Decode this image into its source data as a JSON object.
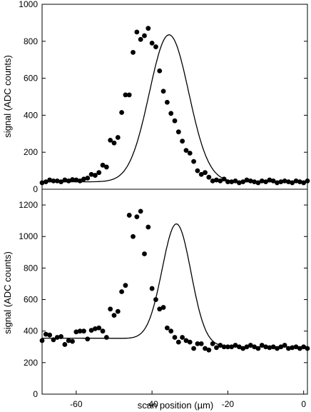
{
  "chart_data": [
    {
      "type": "scatter",
      "xlabel": "",
      "ylabel": "signal (ADC counts)",
      "xlim": [
        -69,
        1
      ],
      "ylim": [
        0,
        1000
      ],
      "yticks": [
        0,
        200,
        400,
        600,
        800,
        1000
      ],
      "xticks": [],
      "grid": false,
      "series": [
        {
          "kind": "points",
          "x": [
            -69,
            -68,
            -67,
            -66,
            -65,
            -64,
            -63,
            -62,
            -61,
            -60,
            -59,
            -58,
            -57,
            -56,
            -55,
            -54,
            -53,
            -52,
            -51,
            -50,
            -49,
            -48,
            -47,
            -46,
            -45,
            -44,
            -43,
            -42,
            -41,
            -40,
            -39,
            -38,
            -37,
            -36,
            -35,
            -34,
            -33,
            -32,
            -31,
            -30,
            -29,
            -28,
            -27,
            -26,
            -25,
            -24,
            -23,
            -22,
            -21,
            -20,
            -19,
            -18,
            -17,
            -16,
            -15,
            -14,
            -13,
            -12,
            -11,
            -10,
            -9,
            -8,
            -7,
            -6,
            -5,
            -4,
            -3,
            -2,
            -1,
            0,
            1
          ],
          "y": [
            35,
            40,
            50,
            45,
            45,
            40,
            50,
            45,
            52,
            50,
            45,
            55,
            60,
            80,
            75,
            90,
            130,
            120,
            265,
            250,
            280,
            415,
            510,
            510,
            740,
            850,
            810,
            830,
            870,
            790,
            770,
            640,
            530,
            470,
            410,
            370,
            310,
            260,
            210,
            195,
            150,
            100,
            80,
            90,
            65,
            45,
            50,
            45,
            55,
            40,
            40,
            45,
            35,
            40,
            50,
            45,
            40,
            35,
            45,
            40,
            50,
            45,
            35,
            40,
            45,
            40,
            35,
            45,
            40,
            35,
            45
          ],
          "x_plot": [
            -68.5,
            -67.5,
            -66.5,
            -65.5,
            -64.5,
            -63.5,
            -62.5,
            -61.5,
            -60.5,
            -59.5,
            -58.5,
            -57.5,
            -56.5,
            -55.5,
            -54.5,
            -53.5,
            -52.5,
            -51.5,
            -50.5,
            -49.5,
            -48.5,
            -47.5,
            -46.5,
            -45.5,
            -44.5,
            -43.5,
            -42.5,
            -41.5,
            -40.5,
            -39.5,
            -38.5,
            -37.5,
            -36.5,
            -35.5,
            -34.5,
            -33.5,
            -32.5,
            -31.5,
            -30.5,
            -29.5,
            -28.5,
            -27.5,
            -26.5,
            -25.5,
            -24.5,
            -23.5,
            -22.5,
            -21.5,
            -20.5,
            -19.5,
            -18.5,
            -17.5,
            -16.5,
            -15.5,
            -14.5,
            -13.5,
            -12.5,
            -11.5,
            -10.5,
            -9.5,
            -8.5,
            -7.5,
            -6.5,
            -5.5,
            -4.5,
            -3.5,
            -2.5,
            -1.5,
            -0.5,
            0.5,
            1.0
          ]
        },
        {
          "kind": "line",
          "peak_x": -35.5,
          "peak_y": 835,
          "baseline": 40,
          "sigma": 5.2
        }
      ]
    },
    {
      "type": "scatter",
      "xlabel": "scan position (µm)",
      "ylabel": "signal (ADC counts)",
      "xlim": [
        -69,
        1
      ],
      "ylim": [
        0,
        1300
      ],
      "yticks": [
        0,
        200,
        400,
        600,
        800,
        1000,
        1200
      ],
      "xticks": [
        -60,
        -40,
        -20,
        0
      ],
      "grid": false,
      "series": [
        {
          "kind": "points",
          "x": [
            -69,
            -68,
            -67,
            -66,
            -65,
            -64,
            -63,
            -62,
            -61,
            -60,
            -59,
            -58,
            -57,
            -56,
            -55,
            -54,
            -53,
            -52,
            -51,
            -50,
            -49,
            -48,
            -47,
            -46,
            -45,
            -44,
            -43,
            -42,
            -41,
            -40,
            -39,
            -38,
            -37,
            -36,
            -35,
            -34,
            -33,
            -32,
            -31,
            -30,
            -29,
            -28,
            -27,
            -26,
            -25,
            -24,
            -23,
            -22,
            -21,
            -20,
            -19,
            -18,
            -17,
            -16,
            -15,
            -14,
            -13,
            -12,
            -11,
            -10,
            -9,
            -8,
            -7,
            -6,
            -5,
            -4,
            -3,
            -2,
            -1,
            0,
            1
          ],
          "y": [
            340,
            380,
            375,
            345,
            360,
            365,
            315,
            340,
            335,
            395,
            400,
            400,
            350,
            405,
            415,
            420,
            400,
            360,
            540,
            500,
            525,
            650,
            690,
            1135,
            1000,
            1125,
            1160,
            890,
            1060,
            670,
            600,
            540,
            550,
            420,
            400,
            360,
            330,
            360,
            340,
            330,
            290,
            320,
            320,
            290,
            280,
            320,
            295,
            310,
            300,
            300,
            300,
            310,
            300,
            290,
            300,
            310,
            300,
            290,
            310,
            300,
            295,
            300,
            290,
            300,
            310,
            290,
            295,
            300,
            290,
            300,
            290
          ]
        },
        {
          "kind": "line",
          "peak_x": -33.5,
          "peak_y": 1080,
          "baseline_left": 355,
          "baseline_right": 300,
          "sigma": 3.8
        }
      ]
    }
  ]
}
